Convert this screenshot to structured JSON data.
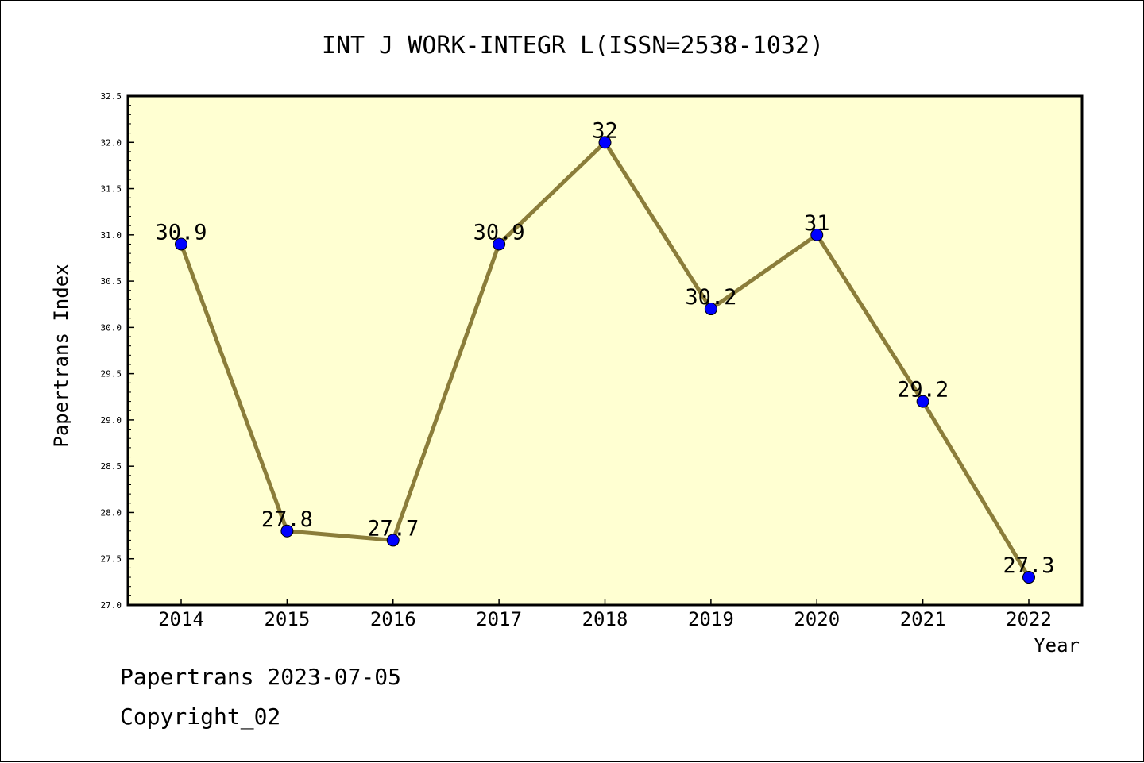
{
  "footer": {
    "date_line": "Papertrans 2023-07-05",
    "copyright": "Copyright_02"
  },
  "colors": {
    "plot_background": "#ffffd2",
    "line": "#8b7d3a",
    "marker": "#0000ff",
    "axis": "#000000"
  },
  "chart_data": {
    "type": "line",
    "title": "INT J WORK-INTEGR L(ISSN=2538-1032)",
    "xlabel": "Year",
    "ylabel": "Papertrans Index",
    "categories": [
      "2014",
      "2015",
      "2016",
      "2017",
      "2018",
      "2019",
      "2020",
      "2021",
      "2022"
    ],
    "series": [
      {
        "values": [
          30.9,
          27.8,
          27.7,
          30.9,
          32.0,
          30.2,
          31.0,
          29.2,
          27.3
        ],
        "data_labels": [
          "30.9",
          "27.8",
          "27.7",
          "30.9",
          "32",
          "30.2",
          "31",
          "29.2",
          "27.3"
        ]
      }
    ],
    "ylim": [
      27.0,
      32.5
    ],
    "yticks": [
      "27.0",
      "27.5",
      "28.0",
      "28.5",
      "29.0",
      "29.5",
      "30.0",
      "30.5",
      "31.0",
      "31.5",
      "32.0",
      "32.5"
    ],
    "grid": false,
    "legend": "none"
  }
}
